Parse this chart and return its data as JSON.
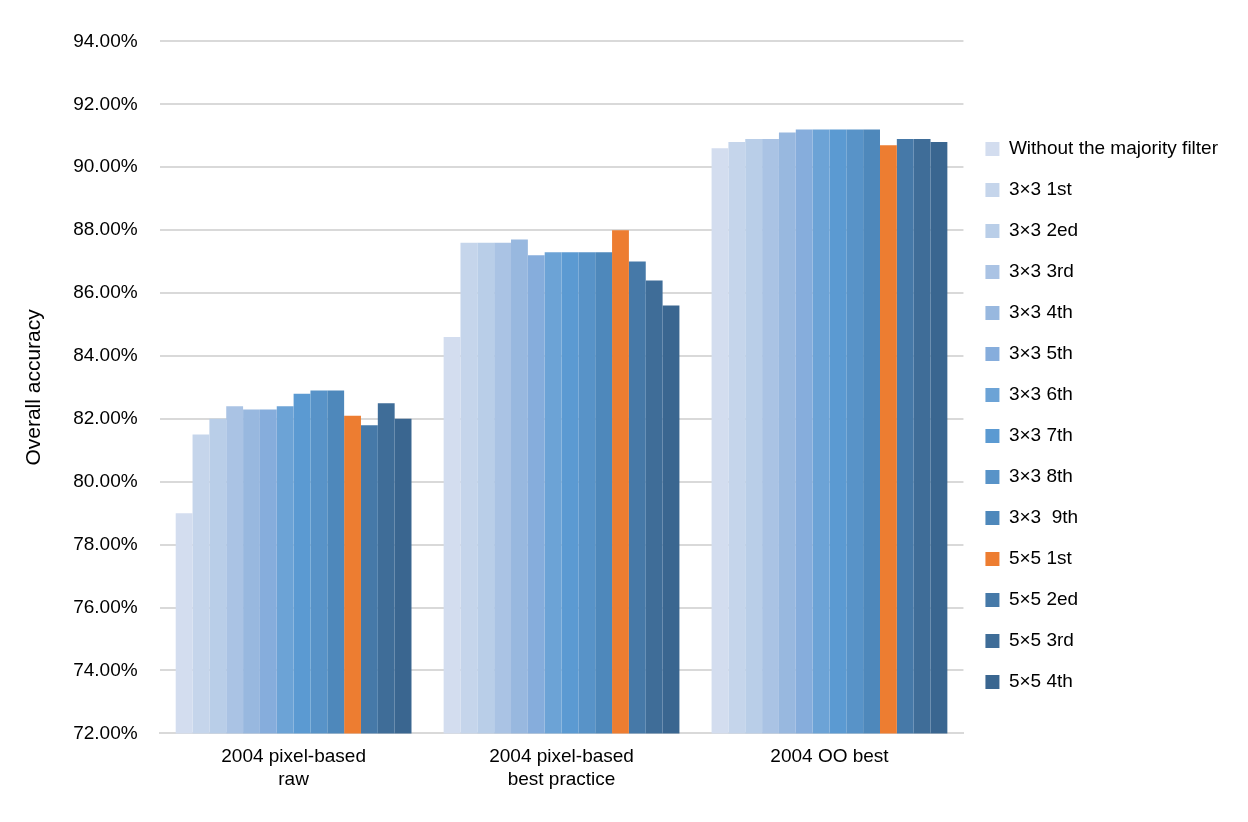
{
  "chart_data": {
    "type": "bar",
    "ylabel": "Overall accuracy",
    "categories": [
      "2004 pixel-based raw",
      "2004 pixel-based best practice",
      "2004 OO best"
    ],
    "ylim": [
      72,
      94
    ],
    "yticks": [
      {
        "value": 72,
        "label": "72.00%"
      },
      {
        "value": 74,
        "label": "74.00%"
      },
      {
        "value": 76,
        "label": "76.00%"
      },
      {
        "value": 78,
        "label": "78.00%"
      },
      {
        "value": 80,
        "label": "80.00%"
      },
      {
        "value": 82,
        "label": "82.00%"
      },
      {
        "value": 84,
        "label": "84.00%"
      },
      {
        "value": 86,
        "label": "86.00%"
      },
      {
        "value": 88,
        "label": "88.00%"
      },
      {
        "value": 90,
        "label": "90.00%"
      },
      {
        "value": 92,
        "label": "92.00%"
      },
      {
        "value": 94,
        "label": "94.00%"
      }
    ],
    "grid": "y",
    "legend": "right",
    "series": [
      {
        "name": "Without the majority filter",
        "color": "#d3ddef",
        "values": [
          79.0,
          84.6,
          90.6
        ]
      },
      {
        "name": "3×3 1st",
        "color": "#c5d5eb",
        "values": [
          81.5,
          87.6,
          90.8
        ]
      },
      {
        "name": "3×3 2ed",
        "color": "#b9cee8",
        "values": [
          82.0,
          87.6,
          90.9
        ]
      },
      {
        "name": "3×3 3rd",
        "color": "#aac3e4",
        "values": [
          82.4,
          87.6,
          90.9
        ]
      },
      {
        "name": "3×3 4th",
        "color": "#98b8df",
        "values": [
          82.3,
          87.7,
          91.1
        ]
      },
      {
        "name": "3×3 5th",
        "color": "#86addc",
        "values": [
          82.3,
          87.2,
          91.2
        ]
      },
      {
        "name": "3×3 6th",
        "color": "#6ca3d6",
        "values": [
          82.4,
          87.3,
          91.2
        ]
      },
      {
        "name": "3×3 7th",
        "color": "#5b9ad2",
        "values": [
          82.8,
          87.3,
          91.2
        ]
      },
      {
        "name": "3×3 8th",
        "color": "#5893c8",
        "values": [
          82.9,
          87.3,
          91.2
        ]
      },
      {
        "name": "3×3  9th",
        "color": "#4e88bb",
        "values": [
          82.9,
          87.3,
          91.2
        ]
      },
      {
        "name": "5×5 1st",
        "color": "#ed7d31",
        "values": [
          82.1,
          88.0,
          90.7
        ]
      },
      {
        "name": "5×5 2ed",
        "color": "#4679a8",
        "values": [
          81.8,
          87.0,
          90.9
        ]
      },
      {
        "name": "5×5 3rd",
        "color": "#3f6d98",
        "values": [
          82.5,
          86.4,
          90.9
        ]
      },
      {
        "name": "5×5 4th",
        "color": "#3a6690",
        "values": [
          82.0,
          85.6,
          90.8
        ]
      }
    ]
  }
}
